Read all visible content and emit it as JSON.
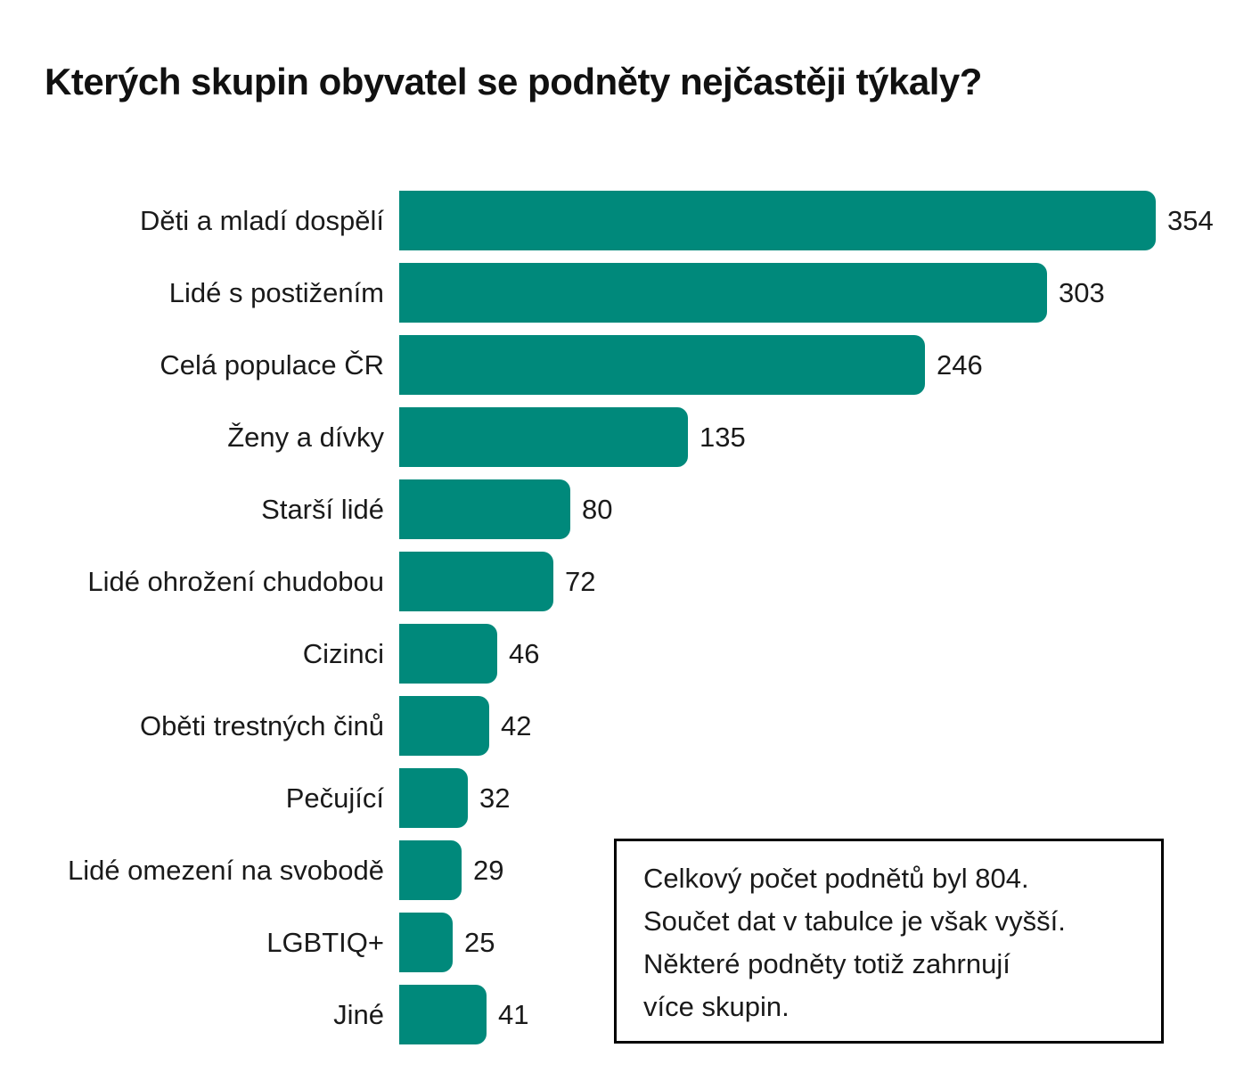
{
  "chart_data": {
    "type": "bar",
    "orientation": "horizontal",
    "title": "Kterých skupin obyvatel se podněty nejčastěji týkaly?",
    "categories": [
      "Děti a mladí dospělí",
      "Lidé s postižením",
      "Celá populace ČR",
      "Ženy a dívky",
      "Starší lidé",
      "Lidé ohrožení chudobou",
      "Cizinci",
      "Oběti trestných činů",
      "Pečující",
      "Lidé omezení na svobodě",
      "LGBTIQ+",
      "Jiné"
    ],
    "values": [
      354,
      303,
      246,
      135,
      80,
      72,
      46,
      42,
      32,
      29,
      25,
      41
    ],
    "xlim": [
      0,
      354
    ],
    "grid": false,
    "legend": false,
    "value_labels": "end-of-bar",
    "bar_color": "#00897B",
    "text_color": "#1a1a1a"
  },
  "note": {
    "lines": [
      "Celkový počet podnětů byl 804.",
      "Součet dat v tabulce je však vyšší.",
      "Některé podněty totiž zahrnují",
      "více skupin."
    ]
  }
}
